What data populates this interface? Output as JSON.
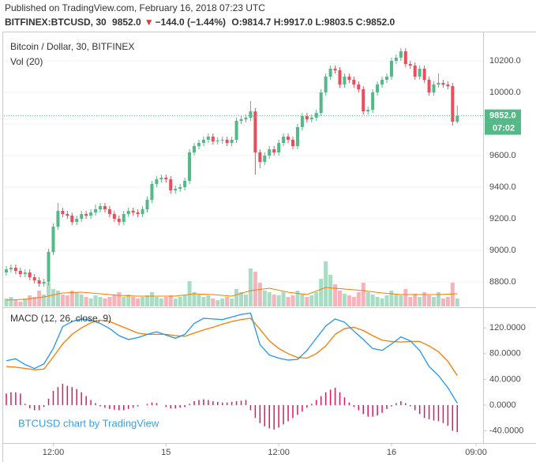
{
  "header": {
    "published": "Published on TradingView.com, February 16, 2018 07:23 UTC",
    "symbol": "BITFINEX:BTCUSD, 30",
    "last": "9852.0",
    "change_arrow": "▼",
    "change": "−144.0 (−1.44%)",
    "ohlc": "O:9814.7 H:9917.0 L:9803.5 C:9852.0"
  },
  "watermark": "BTCUSD chart by TradingView",
  "chart_data": [
    {
      "type": "candlestick",
      "title": "Bitcoin / Dollar, 30, BITFINEX",
      "up_color": "#53b987",
      "down_color": "#eb4d5c",
      "xlim": [
        -0.5,
        101.5
      ],
      "ylim": [
        8645,
        10380
      ],
      "grid": true,
      "yticks": [
        {
          "value": 8800,
          "label": "8800.0"
        },
        {
          "value": 9000,
          "label": "9000.0"
        },
        {
          "value": 9200,
          "label": "9200.0"
        },
        {
          "value": 9400,
          "label": "9400.0"
        },
        {
          "value": 9600,
          "label": "9600.0"
        },
        {
          "value": 9800,
          "label": "9800.0"
        },
        {
          "value": 10000,
          "label": "10000.0"
        },
        {
          "value": 10200,
          "label": "10200.0"
        }
      ],
      "x": [
        0,
        1,
        2,
        3,
        4,
        5,
        6,
        7,
        8,
        9,
        10,
        11,
        12,
        13,
        14,
        15,
        16,
        17,
        18,
        19,
        20,
        21,
        22,
        23,
        24,
        25,
        26,
        27,
        28,
        29,
        30,
        31,
        32,
        33,
        34,
        35,
        36,
        37,
        38,
        39,
        40,
        41,
        42,
        43,
        44,
        45,
        46,
        47,
        48,
        49,
        50,
        51,
        52,
        53,
        54,
        55,
        56,
        57,
        58,
        59,
        60,
        61,
        62,
        63,
        64,
        65,
        66,
        67,
        68,
        69,
        70,
        71,
        72,
        73,
        74,
        75,
        76,
        77,
        78,
        79,
        80,
        81,
        82,
        83,
        84,
        85,
        86,
        87,
        88,
        89,
        90,
        91,
        92,
        93,
        94,
        95,
        96
      ],
      "open": [
        8860,
        8880,
        8890,
        8870,
        8850,
        8860,
        8830,
        8810,
        8790,
        8800,
        8990,
        9150,
        9250,
        9230,
        9220,
        9180,
        9200,
        9230,
        9220,
        9240,
        9260,
        9280,
        9260,
        9230,
        9200,
        9180,
        9230,
        9250,
        9240,
        9230,
        9260,
        9320,
        9420,
        9450,
        9460,
        9450,
        9380,
        9390,
        9400,
        9440,
        9620,
        9660,
        9680,
        9700,
        9720,
        9690,
        9695,
        9700,
        9680,
        9700,
        9820,
        9830,
        9840,
        9880,
        9620,
        9560,
        9600,
        9640,
        9620,
        9680,
        9720,
        9700,
        9660,
        9780,
        9850,
        9830,
        9840,
        9870,
        10000,
        10100,
        10150,
        10140,
        10050,
        10100,
        10080,
        10050,
        10020,
        9880,
        9890,
        10000,
        10050,
        10080,
        10100,
        10200,
        10220,
        10260,
        10180,
        10170,
        10100,
        10150,
        10080,
        10000,
        10050,
        10060,
        10050,
        10040,
        9814.7
      ],
      "high": [
        8900,
        8910,
        8910,
        8890,
        8880,
        8880,
        8850,
        8830,
        8820,
        9010,
        9170,
        9300,
        9270,
        9250,
        9240,
        9220,
        9250,
        9250,
        9260,
        9290,
        9300,
        9300,
        9280,
        9250,
        9220,
        9250,
        9270,
        9270,
        9260,
        9280,
        9340,
        9440,
        9470,
        9480,
        9480,
        9470,
        9410,
        9420,
        9460,
        9640,
        9680,
        9700,
        9720,
        9740,
        9740,
        9715,
        9720,
        9720,
        9720,
        9840,
        9850,
        9860,
        9945,
        9900,
        9640,
        9620,
        9660,
        9660,
        9700,
        9740,
        9740,
        9720,
        9800,
        9870,
        9870,
        9860,
        9890,
        10020,
        10120,
        10170,
        10170,
        10160,
        10120,
        10120,
        10100,
        10070,
        10040,
        9910,
        10020,
        10070,
        10100,
        10120,
        10220,
        10240,
        10280,
        10280,
        10200,
        10190,
        10170,
        10170,
        10100,
        10070,
        10120,
        10080,
        10070,
        10060,
        9917
      ],
      "low": [
        8840,
        8860,
        8850,
        8830,
        8830,
        8810,
        8790,
        8770,
        8770,
        8780,
        8970,
        9130,
        9210,
        9200,
        9160,
        9160,
        9180,
        9200,
        9200,
        9220,
        9240,
        9240,
        9210,
        9180,
        9160,
        9160,
        9210,
        9220,
        9210,
        9210,
        9240,
        9300,
        9400,
        9430,
        9430,
        9360,
        9360,
        9370,
        9380,
        9420,
        9600,
        9640,
        9660,
        9680,
        9670,
        9670,
        9675,
        9660,
        9660,
        9680,
        9800,
        9810,
        9820,
        9480,
        9520,
        9540,
        9580,
        9600,
        9600,
        9660,
        9680,
        9640,
        9640,
        9760,
        9810,
        9810,
        9820,
        9850,
        9980,
        10080,
        10120,
        10030,
        10030,
        10060,
        10030,
        10000,
        9860,
        9860,
        9870,
        9980,
        10030,
        10060,
        10080,
        10180,
        10200,
        10160,
        10150,
        10080,
        10080,
        10060,
        9980,
        9980,
        10030,
        10030,
        10020,
        9790,
        9803.5
      ],
      "close": [
        8880,
        8890,
        8870,
        8850,
        8860,
        8830,
        8810,
        8790,
        8800,
        8990,
        9150,
        9250,
        9230,
        9220,
        9180,
        9200,
        9230,
        9220,
        9240,
        9260,
        9280,
        9260,
        9230,
        9200,
        9180,
        9230,
        9250,
        9240,
        9230,
        9260,
        9320,
        9420,
        9450,
        9460,
        9450,
        9380,
        9390,
        9400,
        9440,
        9620,
        9660,
        9680,
        9700,
        9720,
        9690,
        9695,
        9700,
        9680,
        9700,
        9820,
        9830,
        9840,
        9880,
        9620,
        9560,
        9600,
        9640,
        9620,
        9680,
        9720,
        9700,
        9660,
        9780,
        9850,
        9830,
        9840,
        9870,
        10000,
        10100,
        10150,
        10140,
        10050,
        10100,
        10080,
        10050,
        10020,
        9880,
        9890,
        10000,
        10050,
        10080,
        10100,
        10200,
        10220,
        10260,
        10180,
        10170,
        10100,
        10150,
        10080,
        10000,
        10050,
        10060,
        10050,
        10040,
        9814.7,
        9852
      ],
      "last_price": {
        "value": 9852,
        "label": "9852.0"
      },
      "last_color": "#53b987",
      "countdown": "07:02",
      "volume": {
        "name": "Vol (20)",
        "ylim": [
          0,
          100
        ],
        "up_color": "#a9dcc4",
        "down_color": "#f6b3ba",
        "values": [
          10,
          12,
          8,
          6,
          10,
          14,
          12,
          20,
          15,
          30,
          22,
          20,
          15,
          14,
          20,
          18,
          15,
          12,
          10,
          14,
          12,
          10,
          12,
          15,
          18,
          12,
          15,
          12,
          10,
          12,
          14,
          18,
          12,
          10,
          12,
          14,
          10,
          12,
          14,
          32,
          18,
          15,
          12,
          14,
          10,
          8,
          10,
          12,
          10,
          22,
          18,
          15,
          48,
          44,
          30,
          20,
          18,
          15,
          14,
          18,
          12,
          14,
          20,
          16,
          12,
          14,
          18,
          35,
          57,
          40,
          28,
          20,
          16,
          14,
          12,
          18,
          30,
          18,
          15,
          12,
          10,
          14,
          20,
          16,
          14,
          22,
          12,
          16,
          12,
          18,
          14,
          12,
          18,
          10,
          12,
          30,
          10
        ],
        "ma": {
          "color": "#f57c00",
          "x": [
            0,
            4,
            8,
            12,
            16,
            20,
            24,
            28,
            32,
            36,
            40,
            44,
            48,
            52,
            56,
            60,
            64,
            68,
            72,
            76,
            80,
            84,
            88,
            92,
            96
          ],
          "values": [
            8,
            9,
            12,
            17,
            18,
            16,
            14,
            13,
            13,
            13,
            16,
            15,
            13,
            20,
            23,
            18,
            15,
            24,
            22,
            20,
            17,
            15,
            15,
            15,
            16
          ]
        }
      }
    },
    {
      "type": "macd",
      "title": "MACD (12, 26, close, 9)",
      "xlim": [
        -0.5,
        101.5
      ],
      "ylim": [
        -59,
        151
      ],
      "yticks": [
        {
          "value": -40,
          "label": "-40.0000"
        },
        {
          "value": 0,
          "label": "0.0000"
        },
        {
          "value": 40,
          "label": "40.0000"
        },
        {
          "value": 80,
          "label": "80.0000"
        },
        {
          "value": 120,
          "label": "120.0000"
        }
      ],
      "xticks": [
        {
          "value": 10,
          "label": "12:00"
        },
        {
          "value": 34,
          "label": "15"
        },
        {
          "value": 58,
          "label": "12:00"
        },
        {
          "value": 82,
          "label": "16"
        },
        {
          "value": 100,
          "label": "09:00"
        }
      ],
      "macd": {
        "color": "#2196f3",
        "x": [
          0,
          2,
          4,
          6,
          8,
          10,
          12,
          14,
          16,
          18,
          20,
          22,
          24,
          26,
          28,
          30,
          32,
          34,
          36,
          38,
          40,
          42,
          44,
          46,
          48,
          50,
          52,
          54,
          56,
          58,
          60,
          62,
          64,
          66,
          68,
          70,
          72,
          74,
          76,
          78,
          80,
          82,
          84,
          86,
          88,
          90,
          92,
          94,
          96
        ],
        "values": [
          69,
          72,
          63,
          57,
          64,
          88,
          122,
          130,
          134,
          132,
          127,
          119,
          108,
          102,
          105,
          110,
          114,
          109,
          104,
          110,
          127,
          135,
          134,
          133,
          137,
          141,
          143,
          94,
          78,
          73,
          70,
          71,
          85,
          104,
          123,
          134,
          129,
          115,
          102,
          88,
          85,
          95,
          106,
          100,
          85,
          60,
          46,
          27,
          3
        ]
      },
      "signal": {
        "color": "#f57c00",
        "x": [
          0,
          2,
          4,
          6,
          8,
          10,
          12,
          14,
          16,
          18,
          20,
          22,
          24,
          26,
          28,
          30,
          32,
          34,
          36,
          38,
          40,
          42,
          44,
          46,
          48,
          50,
          52,
          54,
          56,
          58,
          60,
          62,
          64,
          66,
          68,
          70,
          72,
          74,
          76,
          78,
          80,
          82,
          84,
          86,
          88,
          90,
          92,
          94,
          96
        ],
        "values": [
          60,
          59,
          57,
          55,
          56,
          75,
          95,
          110,
          120,
          128,
          132,
          130,
          124,
          118,
          112,
          110,
          110,
          110,
          108,
          107,
          112,
          117,
          121,
          126,
          130,
          133,
          135,
          118,
          100,
          88,
          80,
          74,
          73,
          80,
          92,
          110,
          119,
          121,
          116,
          108,
          101,
          99,
          98,
          99,
          99,
          92,
          83,
          68,
          46
        ]
      },
      "histogram": {
        "color": "#d81b60",
        "x": [
          0,
          1,
          2,
          3,
          4,
          5,
          6,
          7,
          8,
          9,
          10,
          11,
          12,
          13,
          14,
          15,
          16,
          17,
          18,
          19,
          20,
          21,
          22,
          23,
          24,
          25,
          26,
          27,
          28,
          29,
          30,
          31,
          32,
          33,
          34,
          35,
          36,
          37,
          38,
          39,
          40,
          41,
          42,
          43,
          44,
          45,
          46,
          47,
          48,
          49,
          50,
          51,
          52,
          53,
          54,
          55,
          56,
          57,
          58,
          59,
          60,
          61,
          62,
          63,
          64,
          65,
          66,
          67,
          68,
          69,
          70,
          71,
          72,
          73,
          74,
          75,
          76,
          77,
          78,
          79,
          80,
          81,
          82,
          83,
          84,
          85,
          86,
          87,
          88,
          89,
          90,
          91,
          92,
          93,
          94,
          95,
          96
        ],
        "values": [
          18,
          20,
          20,
          18,
          2,
          -5,
          -8,
          -8,
          -3,
          10,
          22,
          28,
          33,
          30,
          28,
          25,
          20,
          14,
          8,
          3,
          -2,
          -4,
          -6,
          -7,
          -8,
          -8,
          -6,
          -4,
          -2,
          0,
          2,
          4,
          3,
          0,
          -3,
          -5,
          -5,
          -4,
          -3,
          2,
          6,
          8,
          9,
          8,
          6,
          5,
          4,
          4,
          5,
          6,
          7,
          8,
          -8,
          -20,
          -28,
          -33,
          -36,
          -38,
          -35,
          -30,
          -25,
          -20,
          -15,
          -10,
          -4,
          2,
          8,
          14,
          20,
          24,
          27,
          20,
          12,
          4,
          -3,
          -8,
          -14,
          -18,
          -18,
          -16,
          -12,
          -6,
          -2,
          3,
          6,
          3,
          -2,
          -8,
          -14,
          -20,
          -22,
          -24,
          -25,
          -28,
          -32,
          -40,
          -42
        ]
      }
    }
  ]
}
